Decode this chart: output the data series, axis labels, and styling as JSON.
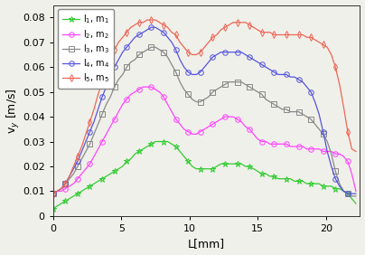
{
  "xlabel": "L[mm]",
  "ylabel": "v$_y$ [m/s]",
  "xlim": [
    0,
    22.5
  ],
  "ylim": [
    0,
    0.085
  ],
  "yticks": [
    0,
    0.01,
    0.02,
    0.03,
    0.04,
    0.05,
    0.06,
    0.07,
    0.08
  ],
  "xticks": [
    0,
    5,
    10,
    15,
    20
  ],
  "ytick_labels": [
    "0",
    "0.01",
    "0.02",
    "0.03",
    "0.04",
    "0.05",
    "0.06",
    "0.07",
    "0.08"
  ],
  "bg_color": "#f5f5f0",
  "series": [
    {
      "label": "l$_1$, m$_1$",
      "color": "#33cc33",
      "marker": "*",
      "markersize": 5,
      "lw": 0.9,
      "x": [
        0.0,
        0.3,
        0.6,
        0.9,
        1.2,
        1.5,
        1.8,
        2.1,
        2.4,
        2.7,
        3.0,
        3.3,
        3.6,
        3.9,
        4.2,
        4.5,
        4.8,
        5.1,
        5.4,
        5.7,
        6.0,
        6.3,
        6.6,
        6.9,
        7.2,
        7.5,
        7.8,
        8.1,
        8.4,
        8.7,
        9.0,
        9.3,
        9.6,
        9.9,
        10.2,
        10.5,
        10.8,
        11.1,
        11.4,
        11.7,
        12.0,
        12.3,
        12.6,
        12.9,
        13.2,
        13.5,
        13.8,
        14.1,
        14.4,
        14.7,
        15.0,
        15.3,
        15.6,
        15.9,
        16.2,
        16.5,
        16.8,
        17.1,
        17.4,
        17.7,
        18.0,
        18.3,
        18.6,
        18.9,
        19.2,
        19.5,
        19.8,
        20.1,
        20.4,
        20.7,
        21.0,
        21.3,
        21.6,
        21.9,
        22.2
      ],
      "y": [
        0.003,
        0.004,
        0.005,
        0.006,
        0.007,
        0.008,
        0.009,
        0.01,
        0.011,
        0.012,
        0.013,
        0.014,
        0.015,
        0.016,
        0.017,
        0.018,
        0.019,
        0.02,
        0.022,
        0.023,
        0.025,
        0.026,
        0.027,
        0.028,
        0.029,
        0.03,
        0.03,
        0.03,
        0.03,
        0.029,
        0.028,
        0.026,
        0.024,
        0.022,
        0.02,
        0.019,
        0.019,
        0.019,
        0.019,
        0.019,
        0.02,
        0.021,
        0.021,
        0.021,
        0.021,
        0.021,
        0.021,
        0.02,
        0.02,
        0.019,
        0.018,
        0.017,
        0.017,
        0.016,
        0.016,
        0.015,
        0.015,
        0.015,
        0.015,
        0.014,
        0.014,
        0.014,
        0.013,
        0.013,
        0.013,
        0.013,
        0.012,
        0.012,
        0.012,
        0.011,
        0.011,
        0.01,
        0.009,
        0.007,
        0.005
      ]
    },
    {
      "label": "l$_2$, m$_2$",
      "color": "#ff44ff",
      "marker": "o",
      "markersize": 4,
      "lw": 0.9,
      "x": [
        0.0,
        0.3,
        0.6,
        0.9,
        1.2,
        1.5,
        1.8,
        2.1,
        2.4,
        2.7,
        3.0,
        3.3,
        3.6,
        3.9,
        4.2,
        4.5,
        4.8,
        5.1,
        5.4,
        5.7,
        6.0,
        6.3,
        6.6,
        6.9,
        7.2,
        7.5,
        7.8,
        8.1,
        8.4,
        8.7,
        9.0,
        9.3,
        9.6,
        9.9,
        10.2,
        10.5,
        10.8,
        11.1,
        11.4,
        11.7,
        12.0,
        12.3,
        12.6,
        12.9,
        13.2,
        13.5,
        13.8,
        14.1,
        14.4,
        14.7,
        15.0,
        15.3,
        15.6,
        15.9,
        16.2,
        16.5,
        16.8,
        17.1,
        17.4,
        17.7,
        18.0,
        18.3,
        18.6,
        18.9,
        19.2,
        19.5,
        19.8,
        20.1,
        20.4,
        20.7,
        21.0,
        21.3,
        21.6,
        21.9,
        22.2
      ],
      "y": [
        0.009,
        0.01,
        0.01,
        0.011,
        0.012,
        0.013,
        0.015,
        0.017,
        0.019,
        0.021,
        0.024,
        0.027,
        0.03,
        0.033,
        0.036,
        0.039,
        0.042,
        0.045,
        0.047,
        0.049,
        0.05,
        0.051,
        0.052,
        0.052,
        0.052,
        0.051,
        0.05,
        0.048,
        0.045,
        0.042,
        0.039,
        0.037,
        0.035,
        0.034,
        0.033,
        0.033,
        0.034,
        0.035,
        0.036,
        0.037,
        0.038,
        0.039,
        0.04,
        0.04,
        0.04,
        0.039,
        0.038,
        0.036,
        0.035,
        0.033,
        0.031,
        0.03,
        0.03,
        0.029,
        0.029,
        0.029,
        0.029,
        0.029,
        0.028,
        0.028,
        0.028,
        0.028,
        0.027,
        0.027,
        0.027,
        0.027,
        0.026,
        0.026,
        0.026,
        0.025,
        0.025,
        0.024,
        0.022,
        0.017,
        0.01
      ]
    },
    {
      "label": "l$_3$, m$_3$",
      "color": "#888888",
      "marker": "s",
      "markersize": 4,
      "lw": 0.9,
      "x": [
        0.0,
        0.3,
        0.6,
        0.9,
        1.2,
        1.5,
        1.8,
        2.1,
        2.4,
        2.7,
        3.0,
        3.3,
        3.6,
        3.9,
        4.2,
        4.5,
        4.8,
        5.1,
        5.4,
        5.7,
        6.0,
        6.3,
        6.6,
        6.9,
        7.2,
        7.5,
        7.8,
        8.1,
        8.4,
        8.7,
        9.0,
        9.3,
        9.6,
        9.9,
        10.2,
        10.5,
        10.8,
        11.1,
        11.4,
        11.7,
        12.0,
        12.3,
        12.6,
        12.9,
        13.2,
        13.5,
        13.8,
        14.1,
        14.4,
        14.7,
        15.0,
        15.3,
        15.6,
        15.9,
        16.2,
        16.5,
        16.8,
        17.1,
        17.4,
        17.7,
        18.0,
        18.3,
        18.6,
        18.9,
        19.2,
        19.5,
        19.8,
        20.1,
        20.4,
        20.7,
        21.0,
        21.3,
        21.6,
        21.9,
        22.2
      ],
      "y": [
        0.009,
        0.01,
        0.011,
        0.013,
        0.015,
        0.017,
        0.02,
        0.023,
        0.026,
        0.029,
        0.033,
        0.037,
        0.041,
        0.045,
        0.048,
        0.052,
        0.055,
        0.057,
        0.06,
        0.062,
        0.063,
        0.065,
        0.066,
        0.067,
        0.068,
        0.068,
        0.067,
        0.066,
        0.064,
        0.061,
        0.058,
        0.054,
        0.051,
        0.049,
        0.047,
        0.046,
        0.046,
        0.047,
        0.048,
        0.05,
        0.051,
        0.052,
        0.053,
        0.054,
        0.054,
        0.054,
        0.054,
        0.053,
        0.052,
        0.051,
        0.05,
        0.049,
        0.047,
        0.046,
        0.045,
        0.044,
        0.043,
        0.043,
        0.042,
        0.042,
        0.042,
        0.041,
        0.04,
        0.039,
        0.037,
        0.035,
        0.033,
        0.03,
        0.025,
        0.018,
        0.013,
        0.01,
        0.009,
        0.008,
        0.008
      ]
    },
    {
      "label": "l$_4$, m$_4$",
      "color": "#5555dd",
      "marker": "o",
      "markersize": 4,
      "lw": 0.9,
      "x": [
        0.0,
        0.3,
        0.6,
        0.9,
        1.2,
        1.5,
        1.8,
        2.1,
        2.4,
        2.7,
        3.0,
        3.3,
        3.6,
        3.9,
        4.2,
        4.5,
        4.8,
        5.1,
        5.4,
        5.7,
        6.0,
        6.3,
        6.6,
        6.9,
        7.2,
        7.5,
        7.8,
        8.1,
        8.4,
        8.7,
        9.0,
        9.3,
        9.6,
        9.9,
        10.2,
        10.5,
        10.8,
        11.1,
        11.4,
        11.7,
        12.0,
        12.3,
        12.6,
        12.9,
        13.2,
        13.5,
        13.8,
        14.1,
        14.4,
        14.7,
        15.0,
        15.3,
        15.6,
        15.9,
        16.2,
        16.5,
        16.8,
        17.1,
        17.4,
        17.7,
        18.0,
        18.3,
        18.6,
        18.9,
        19.2,
        19.5,
        19.8,
        20.1,
        20.4,
        20.7,
        21.0,
        21.3,
        21.6,
        21.9,
        22.2
      ],
      "y": [
        0.009,
        0.01,
        0.011,
        0.013,
        0.016,
        0.019,
        0.022,
        0.026,
        0.03,
        0.034,
        0.038,
        0.043,
        0.048,
        0.052,
        0.056,
        0.06,
        0.063,
        0.066,
        0.068,
        0.07,
        0.072,
        0.073,
        0.074,
        0.075,
        0.076,
        0.076,
        0.075,
        0.074,
        0.072,
        0.07,
        0.067,
        0.063,
        0.06,
        0.058,
        0.057,
        0.057,
        0.058,
        0.06,
        0.062,
        0.064,
        0.065,
        0.066,
        0.066,
        0.066,
        0.066,
        0.066,
        0.066,
        0.065,
        0.064,
        0.063,
        0.062,
        0.061,
        0.06,
        0.059,
        0.058,
        0.057,
        0.057,
        0.057,
        0.056,
        0.056,
        0.055,
        0.054,
        0.052,
        0.05,
        0.046,
        0.041,
        0.034,
        0.026,
        0.02,
        0.015,
        0.012,
        0.01,
        0.009,
        0.009,
        0.009
      ]
    },
    {
      "label": "l$_5$, m$_5$",
      "color": "#ee6655",
      "marker": "d",
      "markersize": 4,
      "lw": 0.9,
      "x": [
        0.0,
        0.3,
        0.6,
        0.9,
        1.2,
        1.5,
        1.8,
        2.1,
        2.4,
        2.7,
        3.0,
        3.3,
        3.6,
        3.9,
        4.2,
        4.5,
        4.8,
        5.1,
        5.4,
        5.7,
        6.0,
        6.3,
        6.6,
        6.9,
        7.2,
        7.5,
        7.8,
        8.1,
        8.4,
        8.7,
        9.0,
        9.3,
        9.6,
        9.9,
        10.2,
        10.5,
        10.8,
        11.1,
        11.4,
        11.7,
        12.0,
        12.3,
        12.6,
        12.9,
        13.2,
        13.5,
        13.8,
        14.1,
        14.4,
        14.7,
        15.0,
        15.3,
        15.6,
        15.9,
        16.2,
        16.5,
        16.8,
        17.1,
        17.4,
        17.7,
        18.0,
        18.3,
        18.6,
        18.9,
        19.2,
        19.5,
        19.8,
        20.1,
        20.4,
        20.7,
        21.0,
        21.3,
        21.6,
        21.9,
        22.2
      ],
      "y": [
        0.009,
        0.01,
        0.011,
        0.013,
        0.016,
        0.02,
        0.024,
        0.028,
        0.033,
        0.038,
        0.043,
        0.049,
        0.054,
        0.059,
        0.063,
        0.067,
        0.07,
        0.072,
        0.074,
        0.076,
        0.077,
        0.078,
        0.078,
        0.079,
        0.079,
        0.079,
        0.078,
        0.077,
        0.076,
        0.074,
        0.073,
        0.07,
        0.068,
        0.066,
        0.065,
        0.065,
        0.066,
        0.068,
        0.07,
        0.072,
        0.073,
        0.075,
        0.076,
        0.077,
        0.078,
        0.078,
        0.078,
        0.078,
        0.077,
        0.076,
        0.075,
        0.074,
        0.074,
        0.074,
        0.073,
        0.073,
        0.073,
        0.073,
        0.073,
        0.073,
        0.073,
        0.073,
        0.072,
        0.072,
        0.071,
        0.07,
        0.069,
        0.068,
        0.065,
        0.06,
        0.053,
        0.044,
        0.034,
        0.027,
        0.026
      ]
    }
  ]
}
